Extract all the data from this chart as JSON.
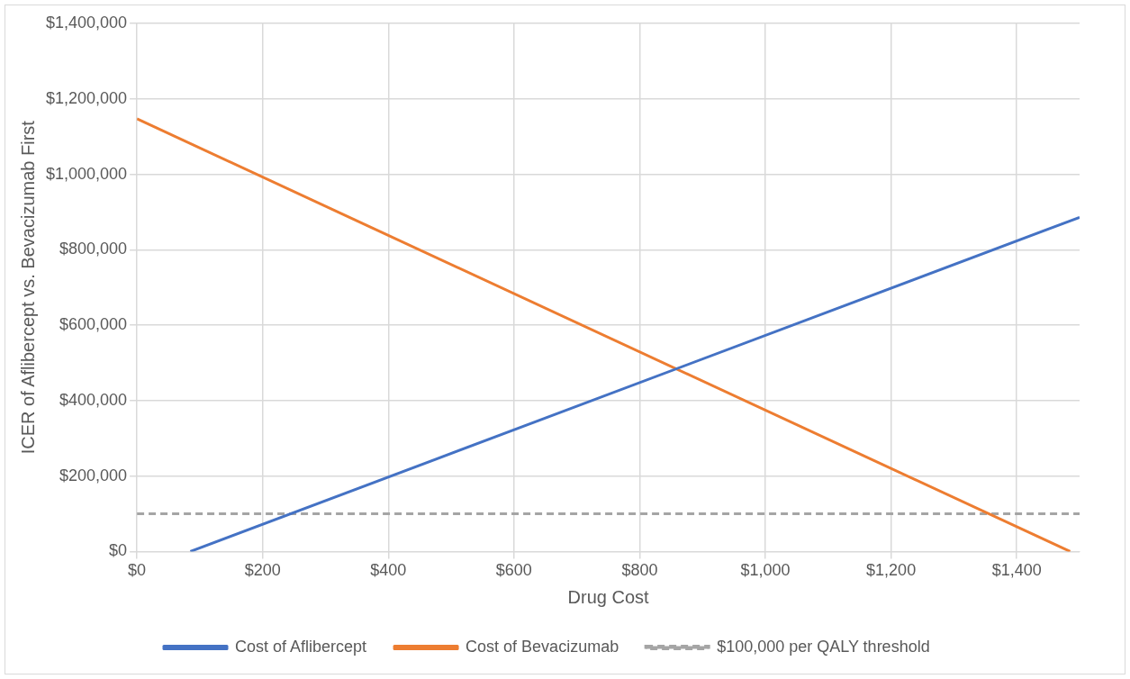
{
  "chart_data": {
    "type": "line",
    "xlabel": "Drug Cost",
    "ylabel": "ICER of Aflibercept vs. Bevacizumab First",
    "series": [
      {
        "name": "Cost of Aflibercept",
        "color": "#4472c4",
        "x": [
          85,
          1500
        ],
        "values": [
          0,
          886000
        ]
      },
      {
        "name": "Cost of Bevacizumab",
        "color": "#ed7d31",
        "x": [
          0,
          1485
        ],
        "values": [
          1147000,
          0
        ]
      }
    ],
    "ref_lines": [
      {
        "axis": "y",
        "value": 100000,
        "label": "$100,000 per QALY threshold",
        "color": "#a5a5a5",
        "line_style": "dashed"
      }
    ],
    "xlim": [
      0,
      1500
    ],
    "xticks": [
      {
        "value": 0,
        "label": "$0"
      },
      {
        "value": 200,
        "label": "$200"
      },
      {
        "value": 400,
        "label": "$400"
      },
      {
        "value": 600,
        "label": "$600"
      },
      {
        "value": 800,
        "label": "$800"
      },
      {
        "value": 1000,
        "label": "$1,000"
      },
      {
        "value": 1200,
        "label": "$1,200"
      },
      {
        "value": 1400,
        "label": "$1,400"
      }
    ],
    "ylim": [
      0,
      1400000
    ],
    "yticks": [
      {
        "value": 0,
        "label": "$0"
      },
      {
        "value": 200000,
        "label": "$200,000"
      },
      {
        "value": 400000,
        "label": "$400,000"
      },
      {
        "value": 600000,
        "label": "$600,000"
      },
      {
        "value": 800000,
        "label": "$800,000"
      },
      {
        "value": 1000000,
        "label": "$1,000,000"
      },
      {
        "value": 1200000,
        "label": "$1,200,000"
      },
      {
        "value": 1400000,
        "label": "$1,400,000"
      }
    ],
    "grid": true,
    "legend": "bottom",
    "marker": "none",
    "line_style": "solid"
  }
}
